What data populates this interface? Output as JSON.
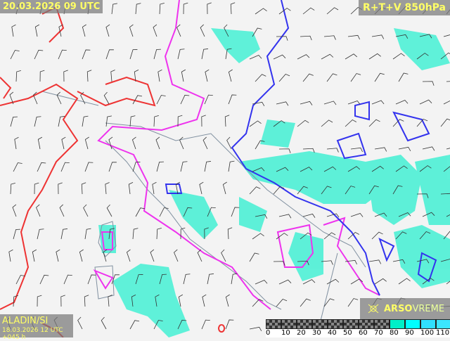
{
  "header": {
    "valid_time": "20.03.2026 09 UTC",
    "product": "R+T+V 850hPa"
  },
  "footer": {
    "model": "ALADIN/SI",
    "run": "18.03.2026 12 UTC +045 h"
  },
  "logo": {
    "bold": "ARSO",
    "light": "VREME",
    "icon": "weather-logo-icon"
  },
  "legend": {
    "ticks": [
      "0",
      "10",
      "20",
      "30",
      "40",
      "50",
      "60",
      "70",
      "80",
      "90",
      "100",
      "110"
    ],
    "colors": [
      "checker",
      "checker",
      "checker",
      "checker",
      "checker",
      "checker",
      "checker",
      "checker",
      "#00f0c8",
      "#00ffff",
      "#30e0ff",
      "#3ce6ff"
    ]
  },
  "colors": {
    "land": "#f3f3f3",
    "coast": "#8090a0",
    "contour_warm": "#ee3333",
    "contour_zero": "#ee33ee",
    "contour_cold": "#3333ee",
    "humidity": "#40f0d0"
  }
}
